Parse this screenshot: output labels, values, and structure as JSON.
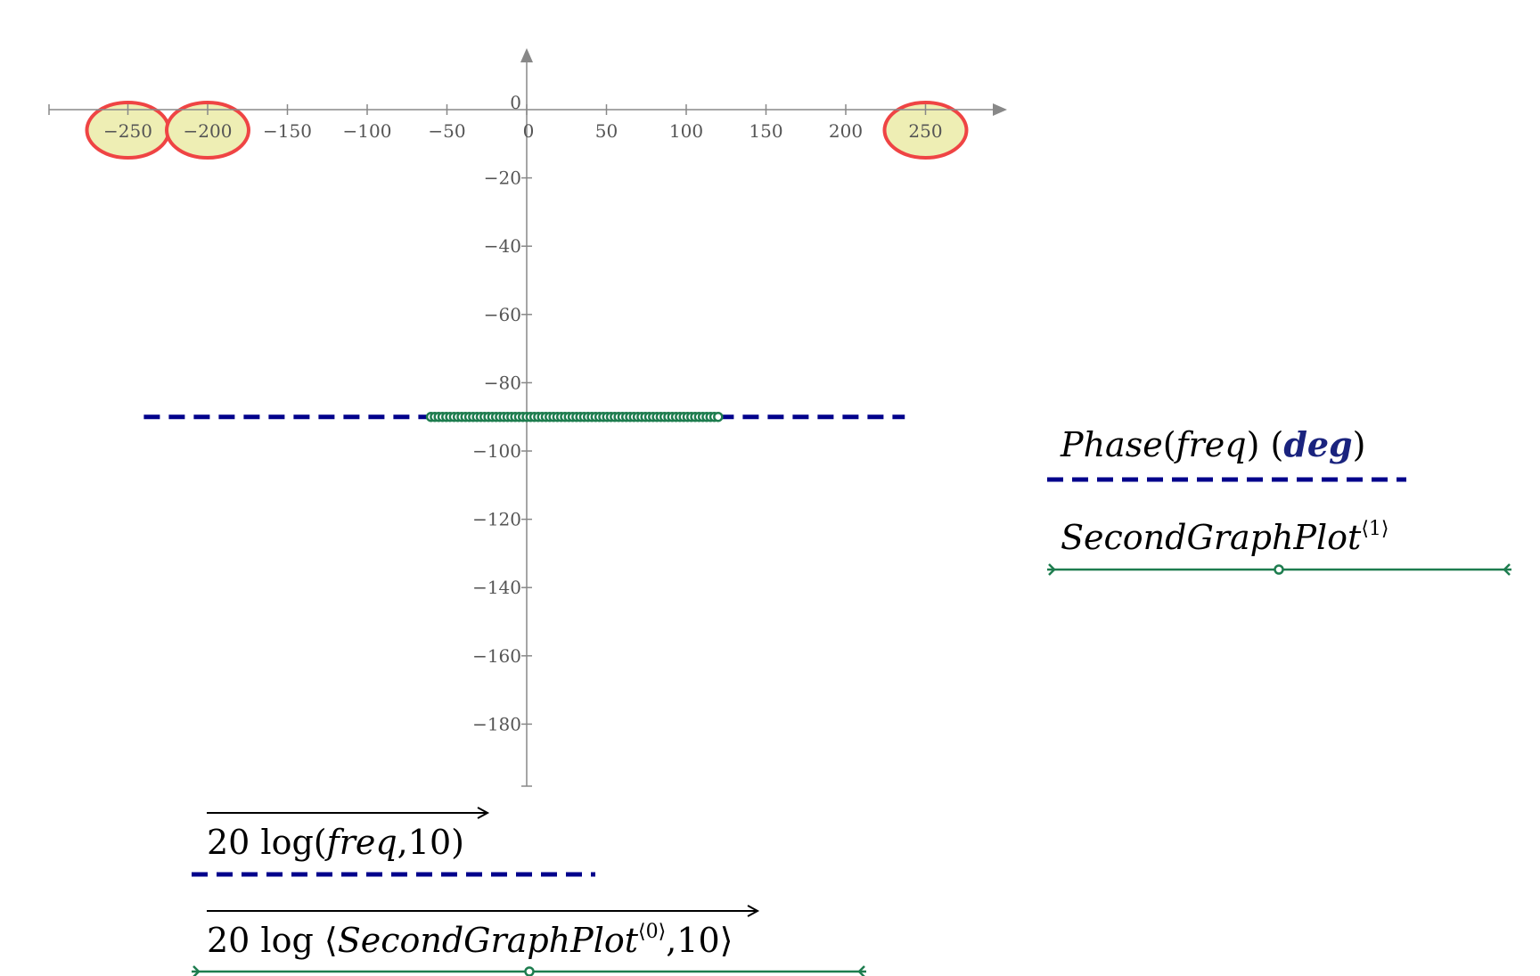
{
  "chart_data": {
    "type": "line",
    "x_ticks": [
      "−250",
      "−200",
      "−150",
      "−100",
      "−50",
      "0",
      "50",
      "100",
      "150",
      "200",
      "250"
    ],
    "x_tick_values": [
      -250,
      -200,
      -150,
      -100,
      -50,
      0,
      50,
      100,
      150,
      200,
      250
    ],
    "y_ticks": [
      "0",
      "−20",
      "−40",
      "−60",
      "−80",
      "−100",
      "−120",
      "−140",
      "−160",
      "−180"
    ],
    "y_tick_values": [
      0,
      -20,
      -40,
      -60,
      -80,
      -100,
      -120,
      -140,
      -160,
      -180
    ],
    "xlim": [
      -300,
      300
    ],
    "ylim": [
      -198,
      18
    ],
    "highlighted_x_ticks": [
      -250,
      -200,
      250
    ],
    "grid": false,
    "legend_placement": "right",
    "series": [
      {
        "x_label_parts": {
          "func": "20 log",
          "arg": "freq",
          "sep": ",",
          "base": "10"
        },
        "y_label_parts": {
          "func": "Phase",
          "arg": "freq",
          "unit": "deg"
        },
        "color": "#00008b",
        "style": "dashed",
        "x": [
          -240,
          237
        ],
        "y": [
          -90,
          -90
        ]
      },
      {
        "x_label_parts": {
          "func": "20 log",
          "arg": "SecondGraphPlot",
          "superscript": "⟨0⟩",
          "sep": ",",
          "base": "10"
        },
        "y_label_parts": {
          "name": "SecondGraphPlot",
          "superscript": "⟨1⟩"
        },
        "color": "#1e7d4f",
        "style": "solid-markers",
        "x_range": [
          -60,
          120
        ],
        "y": -90
      }
    ],
    "highlight_color": "#ef4444",
    "highlight_fill": "#eeeeb4"
  }
}
